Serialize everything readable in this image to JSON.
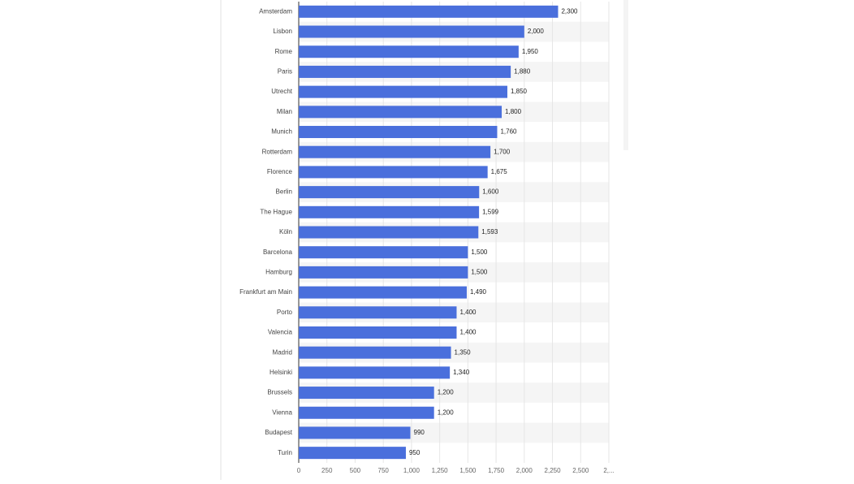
{
  "chart_data": {
    "type": "bar",
    "orientation": "horizontal",
    "color": "#4a6fdc",
    "categories": [
      "Amsterdam",
      "Lisbon",
      "Rome",
      "Paris",
      "Utrecht",
      "Milan",
      "Munich",
      "Rotterdam",
      "Florence",
      "Berlin",
      "The Hague",
      "Köln",
      "Barcelona",
      "Hamburg",
      "Frankfurt am Main",
      "Porto",
      "Valencia",
      "Madrid",
      "Helsinki",
      "Brussels",
      "Vienna",
      "Budapest",
      "Turin"
    ],
    "values": [
      2300,
      2000,
      1950,
      1880,
      1850,
      1800,
      1760,
      1700,
      1675,
      1600,
      1599,
      1593,
      1500,
      1500,
      1490,
      1400,
      1400,
      1350,
      1340,
      1200,
      1200,
      990,
      950
    ],
    "value_labels": [
      "2,300",
      "2,000",
      "1,950",
      "1,880",
      "1,850",
      "1,800",
      "1,760",
      "1,700",
      "1,675",
      "1,600",
      "1,599",
      "1,593",
      "1,500",
      "1,500",
      "1,490",
      "1,400",
      "1,400",
      "1,350",
      "1,340",
      "1,200",
      "1,200",
      "990",
      "950"
    ],
    "xlim": [
      0,
      2750
    ],
    "xticks": [
      0,
      250,
      500,
      750,
      {
        "value": 1000,
        "label": "1,000"
      },
      {
        "value": 1250,
        "label": "1,250"
      },
      {
        "value": 1500,
        "label": "1,500"
      },
      {
        "value": 1750,
        "label": "1,750"
      },
      {
        "value": 2000,
        "label": "2,000"
      },
      {
        "value": 2250,
        "label": "2,250"
      },
      {
        "value": 2500,
        "label": "2,500"
      },
      {
        "value": 2750,
        "label": "2,..."
      }
    ],
    "grid": true
  }
}
